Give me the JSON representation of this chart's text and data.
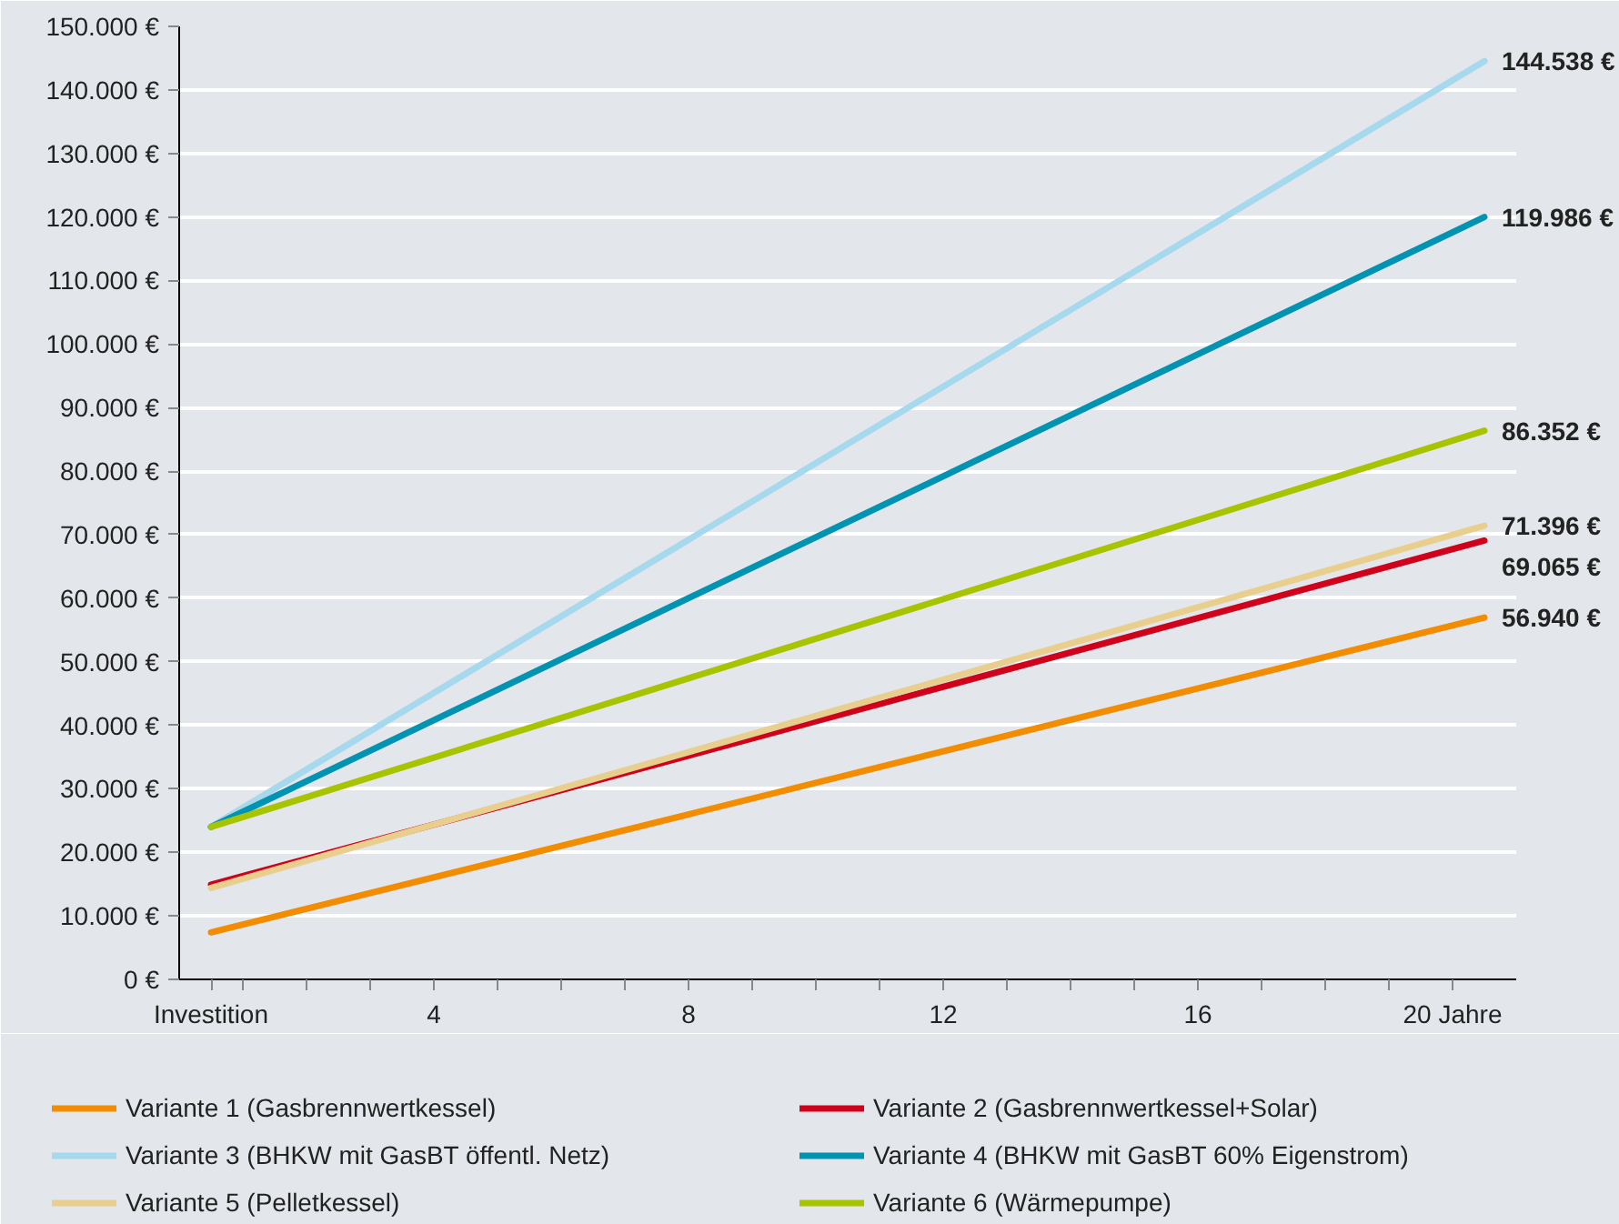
{
  "chart_data": {
    "type": "line",
    "xlim": [
      0,
      21
    ],
    "xticks": [
      {
        "value": 0.5,
        "label": "Investition"
      },
      {
        "value": 1,
        "label": null
      },
      {
        "value": 2,
        "label": null
      },
      {
        "value": 3,
        "label": null
      },
      4,
      {
        "value": 5,
        "label": null
      },
      {
        "value": 6,
        "label": null
      },
      {
        "value": 7,
        "label": null
      },
      8,
      {
        "value": 9,
        "label": null
      },
      {
        "value": 10,
        "label": null
      },
      {
        "value": 11,
        "label": null
      },
      12,
      {
        "value": 13,
        "label": null
      },
      {
        "value": 14,
        "label": null
      },
      {
        "value": 15,
        "label": null
      },
      16,
      {
        "value": 17,
        "label": null
      },
      {
        "value": 18,
        "label": null
      },
      {
        "value": 19,
        "label": null
      },
      {
        "value": 20,
        "label": "20 Jahre"
      }
    ],
    "ylim": [
      0,
      150000
    ],
    "yticks": [
      {
        "value": 0,
        "label": "0 €"
      },
      {
        "value": 10000,
        "label": "10.000 €"
      },
      {
        "value": 20000,
        "label": "20.000 €"
      },
      {
        "value": 30000,
        "label": "30.000 €"
      },
      {
        "value": 40000,
        "label": "40.000 €"
      },
      {
        "value": 50000,
        "label": "50.000 €"
      },
      {
        "value": 60000,
        "label": "60.000 €"
      },
      {
        "value": 70000,
        "label": "70.000 €"
      },
      {
        "value": 80000,
        "label": "80.000 €"
      },
      {
        "value": 90000,
        "label": "90.000 €"
      },
      {
        "value": 100000,
        "label": "100.000 €"
      },
      {
        "value": 110000,
        "label": "110.000 €"
      },
      {
        "value": 120000,
        "label": "120.000 €"
      },
      {
        "value": 130000,
        "label": "130.000 €"
      },
      {
        "value": 140000,
        "label": "140.000 €"
      },
      {
        "value": 150000,
        "label": "150.000 €"
      }
    ],
    "x": [
      0.5,
      20.5
    ],
    "grid": "y",
    "legend": "bottom",
    "marker": "none",
    "line_style": "solid",
    "series": [
      {
        "name": "Variante 1 (Gasbrennwertkessel)",
        "color": "#f28c00",
        "values": [
          7400,
          56940
        ],
        "value_labels": [
          null,
          "56.940 €"
        ]
      },
      {
        "name": "Variante 2 (Gasbrennwertkessel+Solar)",
        "color": "#d0021b",
        "values": [
          14900,
          69065
        ],
        "value_labels": [
          null,
          "69.065 €"
        ]
      },
      {
        "name": "Variante 3 (BHKW mit GasBT öffentl. Netz)",
        "color": "#a6d8ee",
        "values": [
          24000,
          144538
        ],
        "value_labels": [
          null,
          "144.538 €"
        ]
      },
      {
        "name": "Variante 4 (BHKW mit GasBT 60% Eigenstrom)",
        "color": "#0093b2",
        "values": [
          24000,
          119986
        ],
        "value_labels": [
          null,
          "119.986 €"
        ]
      },
      {
        "name": "Variante 5 (Pelletkessel)",
        "color": "#e8cf8e",
        "values": [
          14400,
          71396
        ],
        "value_labels": [
          null,
          "71.396 €"
        ]
      },
      {
        "name": "Variante 6 (Wärmepumpe)",
        "color": "#a8c400",
        "values": [
          24000,
          86352
        ],
        "value_labels": [
          null,
          "86.352 €"
        ]
      }
    ]
  }
}
